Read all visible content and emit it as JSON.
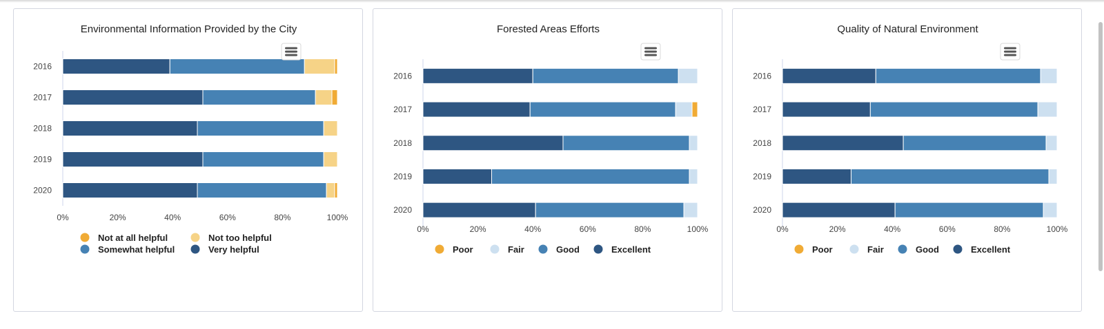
{
  "chart_data": [
    {
      "type": "bar",
      "stacked": true,
      "orientation": "horizontal",
      "title": "Environmental Information Provided by the City",
      "categories": [
        "2016",
        "2017",
        "2018",
        "2019",
        "2020"
      ],
      "xlim": [
        0,
        100
      ],
      "x_ticks": [
        "0%",
        "20%",
        "40%",
        "60%",
        "80%",
        "100%"
      ],
      "legend_position": "bottom",
      "legend_columns": 2,
      "legend_order": [
        "Not at all helpful",
        "Not too helpful",
        "Somewhat helpful",
        "Very helpful"
      ],
      "series": [
        {
          "name": "Very helpful",
          "color": "#2e5682",
          "values": [
            39,
            51,
            49,
            51,
            49
          ]
        },
        {
          "name": "Somewhat helpful",
          "color": "#4682b4",
          "values": [
            49,
            41,
            46,
            44,
            47
          ]
        },
        {
          "name": "Not too helpful",
          "color": "#f6d387",
          "values": [
            11,
            6,
            5,
            5,
            3
          ]
        },
        {
          "name": "Not at all helpful",
          "color": "#f0ab35",
          "values": [
            1,
            2,
            0,
            0,
            1
          ]
        }
      ]
    },
    {
      "type": "bar",
      "stacked": true,
      "orientation": "horizontal",
      "title": "Forested Areas Efforts",
      "categories": [
        "2016",
        "2017",
        "2018",
        "2019",
        "2020"
      ],
      "xlim": [
        0,
        100
      ],
      "x_ticks": [
        "0%",
        "20%",
        "40%",
        "60%",
        "80%",
        "100%"
      ],
      "legend_position": "bottom",
      "legend_columns": 4,
      "legend_order": [
        "Poor",
        "Fair",
        "Good",
        "Excellent"
      ],
      "series": [
        {
          "name": "Excellent",
          "color": "#2e5682",
          "values": [
            40,
            39,
            51,
            25,
            41
          ]
        },
        {
          "name": "Good",
          "color": "#4682b4",
          "values": [
            53,
            53,
            46,
            72,
            54
          ]
        },
        {
          "name": "Fair",
          "color": "#cde0f0",
          "values": [
            7,
            6,
            3,
            3,
            5
          ]
        },
        {
          "name": "Poor",
          "color": "#f0ab35",
          "values": [
            0,
            2,
            0,
            0,
            0
          ]
        }
      ]
    },
    {
      "type": "bar",
      "stacked": true,
      "orientation": "horizontal",
      "title": "Quality of Natural Environment",
      "categories": [
        "2016",
        "2017",
        "2018",
        "2019",
        "2020"
      ],
      "xlim": [
        0,
        100
      ],
      "x_ticks": [
        "0%",
        "20%",
        "40%",
        "60%",
        "80%",
        "100%"
      ],
      "legend_position": "bottom",
      "legend_columns": 4,
      "legend_order": [
        "Poor",
        "Fair",
        "Good",
        "Excellent"
      ],
      "series": [
        {
          "name": "Excellent",
          "color": "#2e5682",
          "values": [
            34,
            32,
            44,
            25,
            41
          ]
        },
        {
          "name": "Good",
          "color": "#4682b4",
          "values": [
            60,
            61,
            52,
            72,
            54
          ]
        },
        {
          "name": "Fair",
          "color": "#cde0f0",
          "values": [
            6,
            7,
            4,
            3,
            5
          ]
        },
        {
          "name": "Poor",
          "color": "#f0ab35",
          "values": [
            0,
            0,
            0,
            0,
            0
          ]
        }
      ]
    }
  ],
  "menu_icon": "hamburger-menu-icon"
}
